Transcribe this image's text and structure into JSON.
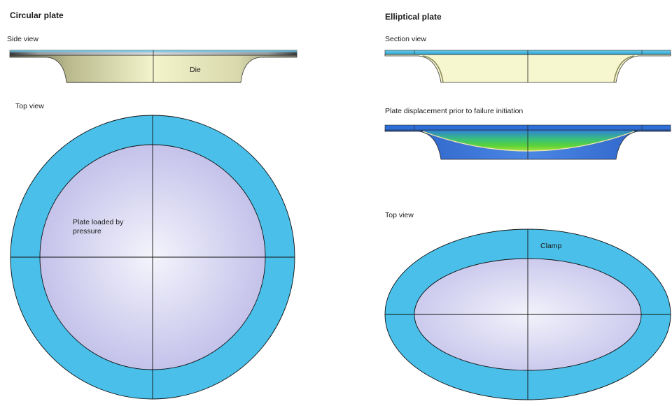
{
  "circular": {
    "title": "Circular plate",
    "side_view_label": "Side view",
    "die_label": "Die",
    "top_view_label": "Top view",
    "plate_label": "Plate loaded by pressure"
  },
  "elliptical": {
    "title": "Elliptical plate",
    "section_view_label": "Section view",
    "displacement_label": "Plate displacement prior to failure initiation",
    "top_view_label": "Top view",
    "clamp_label": "Clamp"
  },
  "colors": {
    "clamp": "#49bfe9",
    "plate_center": "#f4f4fc",
    "plate_edge": "#c4c2ea",
    "die_light": "#f4f4cc",
    "die_dark": "#5a5a4c",
    "outline": "#111111"
  }
}
